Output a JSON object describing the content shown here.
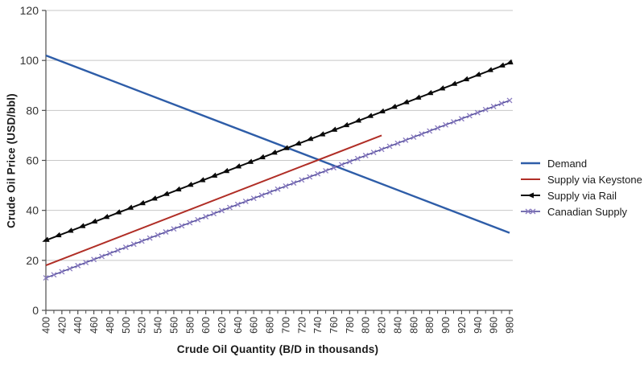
{
  "figure": {
    "background": "#ffffff"
  },
  "chart_data": {
    "type": "line",
    "title": "",
    "xlabel": "Crude Oil Quantity (B/D in thousands)",
    "ylabel": "Crude Oil Price (USD/bbl)",
    "xlim": [
      400,
      980
    ],
    "ylim": [
      0,
      120
    ],
    "x_ticks": [
      400,
      420,
      440,
      460,
      480,
      500,
      520,
      540,
      560,
      580,
      600,
      620,
      640,
      660,
      680,
      700,
      720,
      740,
      760,
      780,
      800,
      820,
      840,
      860,
      880,
      900,
      920,
      940,
      960,
      980
    ],
    "x_minor_tick_step": 10,
    "y_ticks": [
      0,
      20,
      40,
      60,
      80,
      100,
      120
    ],
    "grid": "horizontal-only",
    "gridline_color": "#c7c7c7",
    "axis_color": "#4d4d4d",
    "tick_label_color": "#333333",
    "legend_position": "right",
    "series": [
      {
        "name": "Demand",
        "color": "#2e5da8",
        "line_width": 2.4,
        "marker": "none",
        "points": [
          [
            400,
            102
          ],
          [
            980,
            31
          ]
        ]
      },
      {
        "name": "Supply via Keystone",
        "color": "#b02e26",
        "line_width": 2.0,
        "marker": "none",
        "points": [
          [
            400,
            18
          ],
          [
            820,
            70
          ]
        ]
      },
      {
        "name": "Supply via Rail",
        "color": "#0a0a0a",
        "line_width": 2.0,
        "marker": "triangle",
        "marker_color": "#0a0a0a",
        "marker_step": 15,
        "points": [
          [
            400,
            28
          ],
          [
            980,
            99
          ]
        ]
      },
      {
        "name": "Canadian Supply",
        "color": "#4a4496",
        "line_width": 1.4,
        "marker": "x",
        "marker_color": "#8а7cc0",
        "marker_step": 10,
        "points": [
          [
            400,
            13
          ],
          [
            980,
            84
          ]
        ]
      }
    ]
  }
}
